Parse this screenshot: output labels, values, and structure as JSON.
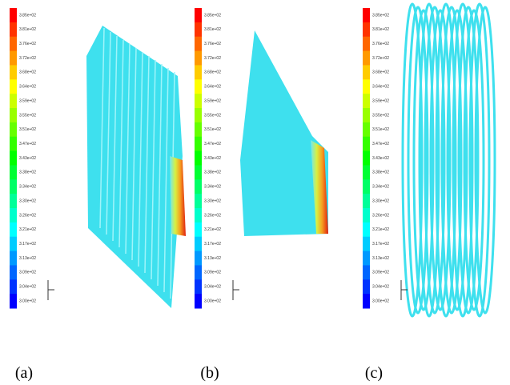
{
  "figure": {
    "colorbar_labels": [
      "3.85e+02",
      "3.81e+02",
      "3.76e+02",
      "3.72e+02",
      "3.68e+02",
      "3.64e+02",
      "3.59e+02",
      "3.55e+02",
      "3.51e+02",
      "3.47e+02",
      "3.43e+02",
      "3.38e+02",
      "3.34e+02",
      "3.30e+02",
      "3.26e+02",
      "3.21e+02",
      "3.17e+02",
      "3.13e+02",
      "3.09e+02",
      "3.04e+02",
      "3.00e+02"
    ],
    "panels": [
      {
        "caption": "(a)"
      },
      {
        "caption": "(b)"
      },
      {
        "caption": "(c)"
      }
    ]
  }
}
